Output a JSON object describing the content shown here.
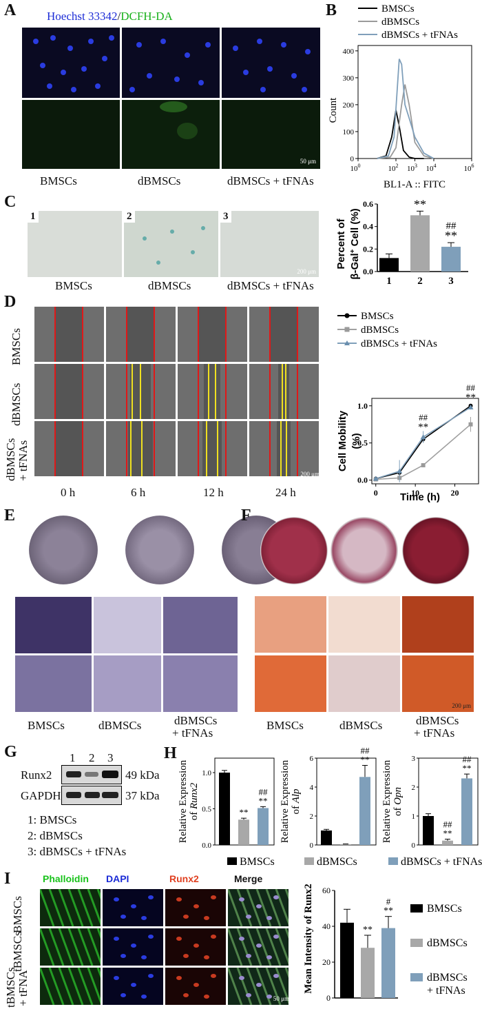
{
  "panels": {
    "A": "A",
    "B": "B",
    "C": "C",
    "D": "D",
    "E": "E",
    "F": "F",
    "G": "G",
    "H": "H",
    "I": "I"
  },
  "colors": {
    "black": "#000000",
    "grey": "#a8a8a8",
    "blue": "#7f9fba",
    "mid_grey": "#9a9a9a",
    "green": "#18c21a",
    "blue_stain": "#1b2bd6",
    "red_stain": "#e04020"
  },
  "panelA": {
    "title_blue": "Hoechst 33342",
    "title_sep": "/",
    "title_green": "DCFH-DA",
    "scale": "50 μm",
    "groups": [
      "BMSCs",
      "dBMSCs",
      "dBMSCs + tFNAs"
    ]
  },
  "panelB": {
    "legend": [
      "BMSCs",
      "dBMSCs",
      "dBMSCs + tFNAs"
    ],
    "ylabel": "Count",
    "xlabel": "BL1-A :: FITC",
    "yticks": [
      "0",
      "100",
      "200",
      "300",
      "400"
    ],
    "xticks": [
      "10",
      "10",
      "10",
      "10",
      "10"
    ],
    "xexp": [
      "0",
      "2",
      "3",
      "4",
      "6"
    ]
  },
  "panelC": {
    "tiles": [
      "1",
      "2",
      "3"
    ],
    "scale": "200 μm",
    "groups": [
      "BMSCs",
      "dBMSCs",
      "dBMSCs + tFNAs"
    ],
    "ylabel_1": "Percent of",
    "ylabel_2": "β-Gal",
    "ylabel_sup": "+",
    "ylabel_3": " Cell (%)",
    "sig": [
      "**",
      "##",
      "**"
    ]
  },
  "panelD": {
    "rows": [
      "BMSCs",
      "dBMSCs",
      "dBMSCs"
    ],
    "row3_second": "+ tFNAs",
    "times": [
      "0 h",
      "6 h",
      "12 h",
      "24 h"
    ],
    "scale": "200 μm",
    "legend": [
      "BMSCs",
      "dBMSCs",
      "dBMSCs + tFNAs"
    ],
    "ylabel_1": "Cell Mobility",
    "ylabel_2": "(%)",
    "xlabel": "Time (h)",
    "yticks": [
      "0.0",
      "0.5",
      "1.0"
    ],
    "xticks": [
      "0",
      "10",
      "20"
    ],
    "sig": [
      "##",
      "**",
      "##",
      "**"
    ]
  },
  "panelE": {
    "groups": [
      "BMSCs",
      "dBMSCs",
      "dBMSCs"
    ],
    "g3_second": "+ tFNAs"
  },
  "panelF": {
    "groups": [
      "BMSCs",
      "dBMSCs",
      "dBMSCs"
    ],
    "g3_second": "+ tFNAs",
    "scale": "200 μm"
  },
  "panelG": {
    "lanes": [
      "1",
      "2",
      "3"
    ],
    "rows": [
      {
        "name": "Runx2",
        "kda": "49 kDa"
      },
      {
        "name": "GAPDH",
        "kda": "37 kDa"
      }
    ],
    "key": [
      "1:  BMSCs",
      "2:  dBMSCs",
      "3:  dBMSCs + tFNAs"
    ]
  },
  "panelH": {
    "ylabel_prefix": "Relative Expression",
    "genes": [
      "Runx2",
      "Alp",
      "Opn"
    ],
    "of": "of ",
    "legend": [
      "BMSCs",
      "dBMSCs",
      "dBMSCs + tFNAs"
    ],
    "yticks_runx2": [
      "0.0",
      "0.5",
      "1.0"
    ],
    "yticks_alp": [
      "0",
      "2",
      "4",
      "6"
    ],
    "yticks_opn": [
      "0",
      "1",
      "2",
      "3"
    ],
    "sig": [
      "**",
      "##",
      "**",
      "##",
      "**",
      "##",
      "**",
      "##",
      "**"
    ]
  },
  "panelI": {
    "channels": [
      "Phalloidin",
      "DAPI",
      "Runx2",
      "Merge"
    ],
    "rows": [
      "BMSCs",
      "tBMSCs",
      "tBMSCs"
    ],
    "row3_second": "+ tFNA",
    "scale": "50 μm",
    "ylabel": "Mean Intensity of Runx2",
    "yticks": [
      "0",
      "20",
      "40",
      "60"
    ],
    "legend": [
      "BMSCs",
      "dBMSCs",
      "dBMSCs",
      "+ tFNAs"
    ],
    "sig": [
      "**",
      "#",
      "**"
    ]
  },
  "chart_data": [
    {
      "type": "line",
      "title": "",
      "xlabel": "BL1-A :: FITC",
      "ylabel": "Count",
      "xscale": "log",
      "xlim": [
        1,
        1000000
      ],
      "ylim": [
        0,
        400
      ],
      "series": [
        {
          "name": "BMSCs",
          "x": [
            10,
            30,
            60,
            100,
            150,
            250,
            500,
            1000,
            3000
          ],
          "y": [
            0,
            10,
            80,
            180,
            120,
            30,
            5,
            0,
            0
          ]
        },
        {
          "name": "dBMSCs",
          "x": [
            10,
            50,
            100,
            200,
            300,
            500,
            1000,
            3000,
            10000
          ],
          "y": [
            0,
            5,
            40,
            200,
            275,
            200,
            60,
            10,
            0
          ]
        },
        {
          "name": "dBMSCs + tFNAs",
          "x": [
            10,
            40,
            80,
            150,
            200,
            300,
            500,
            1000,
            3000,
            10000
          ],
          "y": [
            0,
            10,
            80,
            370,
            350,
            200,
            150,
            80,
            20,
            0
          ]
        }
      ]
    },
    {
      "type": "bar",
      "title": "",
      "categories": [
        "1",
        "2",
        "3"
      ],
      "values": [
        0.12,
        0.5,
        0.22
      ],
      "ylabel": "Percent of β-Gal+ Cell (%)",
      "ylim": [
        0,
        0.6
      ],
      "yticks": [
        0.0,
        0.2,
        0.4,
        0.6
      ]
    },
    {
      "type": "line",
      "title": "",
      "xlabel": "Time (h)",
      "ylabel": "Cell Mobility (%)",
      "xlim": [
        0,
        25
      ],
      "ylim": [
        0,
        1.05
      ],
      "series": [
        {
          "name": "BMSCs",
          "x": [
            0,
            6,
            12,
            24
          ],
          "y": [
            0.02,
            0.1,
            0.55,
            1.0
          ]
        },
        {
          "name": "dBMSCs",
          "x": [
            0,
            6,
            12,
            24
          ],
          "y": [
            0.01,
            0.03,
            0.2,
            0.75
          ]
        },
        {
          "name": "dBMSCs + tFNAs",
          "x": [
            0,
            6,
            12,
            24
          ],
          "y": [
            0.02,
            0.12,
            0.58,
            0.98
          ]
        }
      ]
    },
    {
      "type": "bar",
      "title": "",
      "categories": [
        "BMSCs",
        "dBMSCs",
        "dBMSCs + tFNAs"
      ],
      "ylabel": "Relative Expression of Runx2",
      "values": [
        1.0,
        0.35,
        0.51
      ],
      "ylim": [
        0,
        1.2
      ]
    },
    {
      "type": "bar",
      "title": "",
      "categories": [
        "BMSCs",
        "dBMSCs",
        "dBMSCs + tFNAs"
      ],
      "ylabel": "Relative Expression of Alp",
      "values": [
        1.0,
        0.05,
        4.7
      ],
      "ylim": [
        0,
        6
      ]
    },
    {
      "type": "bar",
      "title": "",
      "categories": [
        "BMSCs",
        "dBMSCs",
        "dBMSCs + tFNAs"
      ],
      "ylabel": "Relative Expression of Opn",
      "values": [
        1.0,
        0.15,
        2.3
      ],
      "ylim": [
        0,
        3
      ]
    },
    {
      "type": "bar",
      "title": "",
      "categories": [
        "BMSCs",
        "dBMSCs",
        "dBMSCs + tFNAs"
      ],
      "ylabel": "Mean Intensity of Runx2",
      "values": [
        42,
        28,
        39
      ],
      "ylim": [
        0,
        60
      ]
    }
  ]
}
